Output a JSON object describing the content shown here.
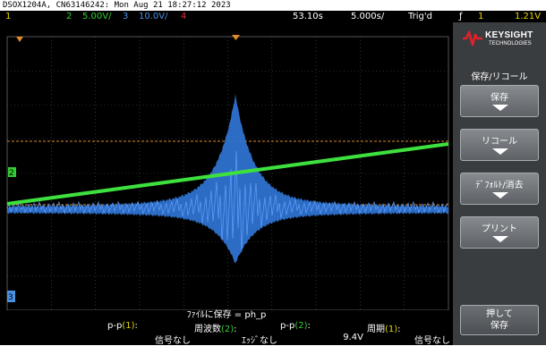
{
  "title": "DSOX1204A, CN63146242: Mon Aug 21 18:27:12 2023",
  "status": {
    "ch1_num": "1",
    "ch2_num": "2",
    "ch2_scale": "5.00V/",
    "ch3_num": "3",
    "ch3_scale": "10.0V/",
    "ch4_num": "4",
    "time_offset": "53.10s",
    "time_scale": "5.000s/",
    "trigger_state": "Trig'd",
    "trigger_icon": "ƒ",
    "trigger_source": "1",
    "trigger_level": "1.21V"
  },
  "colors": {
    "ch1": "#e6d400",
    "ch2": "#33cc33",
    "ch3": "#4a90e2",
    "ch4": "#e03030",
    "cursor": "#e08a2a",
    "grid": "#555555"
  },
  "screen": {
    "ch2_marker": "2",
    "ch3_marker": "3"
  },
  "brand": {
    "name": "KEYSIGHT",
    "sub": "TECHNOLOGIES"
  },
  "menu": {
    "title": "保存/リコール",
    "softkeys": [
      {
        "label": "保存"
      },
      {
        "label": "リコール"
      },
      {
        "label": "ﾃﾞﾌｫﾙﾄ/消去"
      },
      {
        "label": "プリント"
      }
    ],
    "push_save_line1": "押して",
    "push_save_line2": "保存"
  },
  "save_status": "ﾌｧｲﾙに保存 = ph_p",
  "measurements": [
    {
      "name": "p-p",
      "ch": "(1)",
      "suffix": ":",
      "value": "信号なし",
      "color": "ch1"
    },
    {
      "name": "周波数",
      "ch": "(2)",
      "suffix": ":",
      "value": "ｴｯｼﾞなし",
      "color": "ch2"
    },
    {
      "name": "p-p",
      "ch": "(2)",
      "suffix": ":",
      "value": "9.4V",
      "color": "ch2"
    },
    {
      "name": "周期",
      "ch": "(1)",
      "suffix": ":",
      "value": "信号なし",
      "color": "ch1"
    }
  ]
}
